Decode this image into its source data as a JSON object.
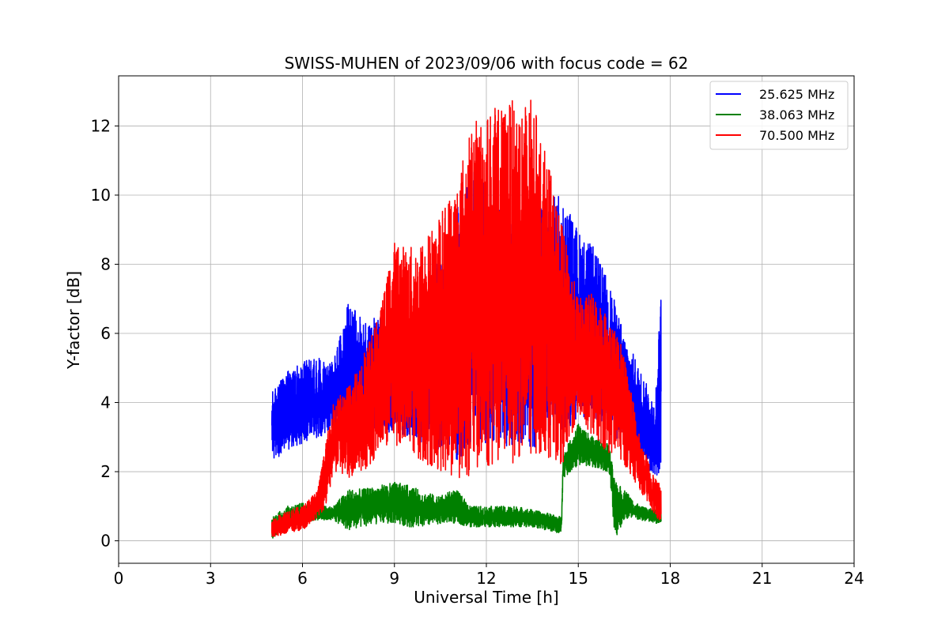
{
  "chart_data": {
    "type": "line",
    "title": "SWISS-MUHEN of 2023/09/06 with focus code = 62",
    "xlabel": "Universal Time [h]",
    "ylabel": "Y-factor [dB]",
    "xlim": [
      0,
      24
    ],
    "ylim": [
      -0.65,
      13.45
    ],
    "xticks": [
      0,
      3,
      6,
      9,
      12,
      15,
      18,
      21,
      24
    ],
    "xtick_labels": [
      "0",
      "3",
      "6",
      "9",
      "12",
      "15",
      "18",
      "21",
      "24"
    ],
    "yticks": [
      0,
      2,
      4,
      6,
      8,
      10,
      12
    ],
    "ytick_labels": [
      "0",
      "2",
      "4",
      "6",
      "8",
      "10",
      "12"
    ],
    "grid": true,
    "legend_position": "top-right",
    "series": [
      {
        "name": "25.625 MHz",
        "color": "#0000ff",
        "x": [
          5.0,
          5.5,
          6.0,
          6.5,
          7.0,
          7.5,
          8.0,
          8.5,
          9.0,
          9.5,
          10.0,
          10.5,
          11.0,
          11.5,
          12.0,
          12.5,
          13.0,
          13.5,
          14.0,
          14.5,
          15.0,
          15.5,
          16.0,
          16.5,
          17.0,
          17.5,
          17.7
        ],
        "low": [
          2.3,
          2.6,
          2.8,
          3.0,
          3.1,
          3.1,
          3.2,
          3.2,
          3.1,
          3.0,
          2.8,
          2.6,
          2.2,
          2.8,
          2.8,
          2.7,
          2.8,
          2.7,
          2.7,
          3.0,
          3.6,
          3.5,
          3.2,
          2.6,
          2.3,
          1.9,
          1.8
        ],
        "high": [
          4.3,
          4.9,
          5.2,
          5.3,
          5.2,
          6.9,
          6.4,
          6.5,
          5.5,
          6.0,
          7.0,
          8.5,
          9.5,
          11.0,
          10.5,
          9.5,
          9.5,
          9.5,
          10.0,
          10.0,
          9.0,
          8.5,
          7.5,
          6.0,
          5.0,
          4.0,
          7.2
        ]
      },
      {
        "name": "38.063 MHz",
        "color": "#008000",
        "x": [
          5.0,
          5.5,
          6.0,
          6.5,
          7.0,
          7.5,
          8.0,
          8.5,
          9.0,
          9.5,
          10.0,
          10.5,
          11.0,
          11.5,
          12.0,
          12.5,
          13.0,
          13.5,
          14.0,
          14.45,
          14.5,
          15.0,
          15.5,
          16.0,
          16.2,
          16.5,
          17.0,
          17.5,
          17.7
        ],
        "low": [
          0.05,
          0.4,
          0.55,
          0.6,
          0.6,
          0.3,
          0.4,
          0.5,
          0.5,
          0.4,
          0.4,
          0.5,
          0.5,
          0.4,
          0.4,
          0.4,
          0.4,
          0.4,
          0.3,
          0.2,
          1.8,
          2.2,
          2.1,
          2.0,
          0.05,
          0.6,
          0.6,
          0.5,
          0.5
        ],
        "high": [
          0.7,
          1.0,
          1.1,
          1.0,
          1.0,
          1.5,
          1.5,
          1.6,
          1.7,
          1.6,
          1.4,
          1.3,
          1.5,
          1.0,
          1.0,
          1.0,
          1.0,
          0.9,
          0.8,
          0.7,
          2.5,
          3.4,
          3.0,
          2.8,
          1.7,
          1.5,
          1.0,
          0.9,
          0.8
        ]
      },
      {
        "name": "70.500 MHz",
        "color": "#ff0000",
        "x": [
          5.0,
          5.5,
          6.0,
          6.5,
          6.8,
          7.0,
          7.5,
          8.0,
          8.5,
          9.0,
          9.5,
          10.0,
          10.5,
          11.0,
          11.5,
          12.0,
          12.5,
          13.0,
          13.5,
          14.0,
          14.5,
          15.0,
          15.5,
          16.0,
          16.5,
          17.0,
          17.5,
          17.7
        ],
        "low": [
          0.1,
          0.2,
          0.3,
          0.7,
          1.0,
          2.0,
          1.8,
          2.0,
          2.5,
          2.8,
          2.5,
          2.2,
          2.0,
          1.8,
          1.9,
          2.0,
          2.1,
          2.3,
          2.5,
          2.4,
          2.2,
          3.5,
          3.0,
          2.5,
          2.2,
          1.5,
          0.7,
          0.5
        ],
        "high": [
          0.6,
          0.9,
          1.0,
          1.5,
          3.0,
          4.0,
          4.5,
          5.5,
          6.5,
          8.7,
          8.5,
          8.8,
          9.5,
          10.5,
          12.0,
          12.5,
          12.6,
          12.8,
          12.8,
          11.0,
          9.0,
          7.0,
          7.2,
          6.5,
          5.5,
          3.0,
          1.8,
          1.6
        ]
      }
    ]
  }
}
